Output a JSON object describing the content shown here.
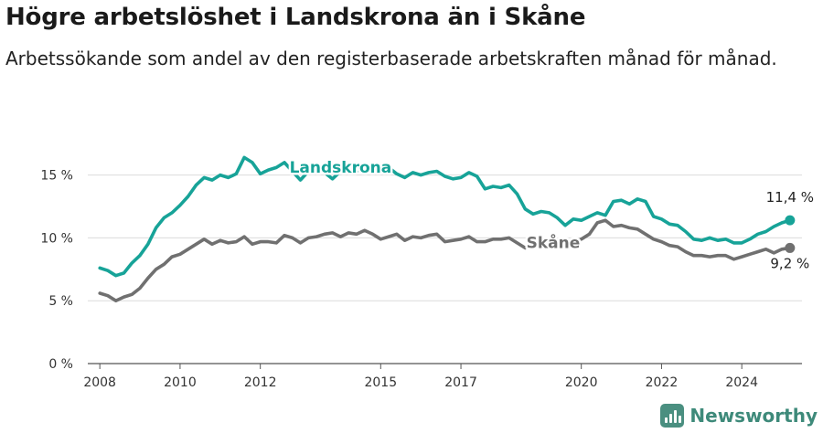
{
  "title": "Högre arbetslöshet i Landskrona än i Skåne",
  "subtitle": "Arbetssökande som andel av den registerbaserade arbetskraften månad för månad.",
  "brand": {
    "name": "Newsworthy",
    "logo_icon": "bar-chart-icon"
  },
  "colors": {
    "landskrona": "#17a398",
    "skane": "#707070",
    "grid": "#dcdcdc",
    "axis": "#555555"
  },
  "chart_data": {
    "type": "line",
    "title": "Högre arbetslöshet i Landskrona än i Skåne",
    "xlabel": "",
    "ylabel": "",
    "xlim": [
      2007.7,
      2025.5
    ],
    "ylim": [
      0,
      17.3
    ],
    "grid": true,
    "x_ticks": [
      {
        "value": 2008,
        "label": "2008"
      },
      {
        "value": 2010,
        "label": "2010"
      },
      {
        "value": 2012,
        "label": "2012"
      },
      {
        "value": 2015,
        "label": "2015"
      },
      {
        "value": 2017,
        "label": "2017"
      },
      {
        "value": 2020,
        "label": "2020"
      },
      {
        "value": 2022,
        "label": "2022"
      },
      {
        "value": 2024,
        "label": "2024"
      }
    ],
    "y_ticks": [
      {
        "value": 0,
        "label": "0 %"
      },
      {
        "value": 5,
        "label": "5 %"
      },
      {
        "value": 10,
        "label": "10 %"
      },
      {
        "value": 15,
        "label": "15 %"
      }
    ],
    "series": [
      {
        "name": "Landskrona",
        "color": "#17a398",
        "end_label": "11,4 %",
        "points": [
          [
            2008.0,
            7.6
          ],
          [
            2008.2,
            7.4
          ],
          [
            2008.4,
            7.0
          ],
          [
            2008.6,
            7.2
          ],
          [
            2008.8,
            8.0
          ],
          [
            2009.0,
            8.6
          ],
          [
            2009.2,
            9.5
          ],
          [
            2009.4,
            10.8
          ],
          [
            2009.6,
            11.6
          ],
          [
            2009.8,
            12.0
          ],
          [
            2010.0,
            12.6
          ],
          [
            2010.2,
            13.3
          ],
          [
            2010.4,
            14.2
          ],
          [
            2010.6,
            14.8
          ],
          [
            2010.8,
            14.6
          ],
          [
            2011.0,
            15.0
          ],
          [
            2011.2,
            14.8
          ],
          [
            2011.4,
            15.1
          ],
          [
            2011.6,
            16.4
          ],
          [
            2011.8,
            16.0
          ],
          [
            2012.0,
            15.1
          ],
          [
            2012.2,
            15.4
          ],
          [
            2012.4,
            15.6
          ],
          [
            2012.6,
            16.0
          ],
          [
            2012.8,
            15.3
          ],
          [
            2013.0,
            14.6
          ],
          [
            2013.2,
            15.3
          ],
          [
            2013.4,
            15.4
          ],
          [
            2013.6,
            15.2
          ],
          [
            2013.8,
            14.7
          ],
          [
            2014.0,
            15.3
          ],
          [
            2014.2,
            15.4
          ],
          [
            2014.4,
            15.3
          ],
          [
            2014.6,
            15.7
          ],
          [
            2014.8,
            15.6
          ],
          [
            2015.0,
            15.8
          ],
          [
            2015.2,
            15.6
          ],
          [
            2015.4,
            15.1
          ],
          [
            2015.6,
            14.8
          ],
          [
            2015.8,
            15.2
          ],
          [
            2016.0,
            15.0
          ],
          [
            2016.2,
            15.2
          ],
          [
            2016.4,
            15.3
          ],
          [
            2016.6,
            14.9
          ],
          [
            2016.8,
            14.7
          ],
          [
            2017.0,
            14.8
          ],
          [
            2017.2,
            15.2
          ],
          [
            2017.4,
            14.9
          ],
          [
            2017.6,
            13.9
          ],
          [
            2017.8,
            14.1
          ],
          [
            2018.0,
            14.0
          ],
          [
            2018.2,
            14.2
          ],
          [
            2018.4,
            13.5
          ],
          [
            2018.6,
            12.3
          ],
          [
            2018.8,
            11.9
          ],
          [
            2019.0,
            12.1
          ],
          [
            2019.2,
            12.0
          ],
          [
            2019.4,
            11.6
          ],
          [
            2019.6,
            11.0
          ],
          [
            2019.8,
            11.5
          ],
          [
            2020.0,
            11.4
          ],
          [
            2020.2,
            11.7
          ],
          [
            2020.4,
            12.0
          ],
          [
            2020.6,
            11.8
          ],
          [
            2020.8,
            12.9
          ],
          [
            2021.0,
            13.0
          ],
          [
            2021.2,
            12.7
          ],
          [
            2021.4,
            13.1
          ],
          [
            2021.6,
            12.9
          ],
          [
            2021.8,
            11.7
          ],
          [
            2022.0,
            11.5
          ],
          [
            2022.2,
            11.1
          ],
          [
            2022.4,
            11.0
          ],
          [
            2022.6,
            10.5
          ],
          [
            2022.8,
            9.9
          ],
          [
            2023.0,
            9.8
          ],
          [
            2023.2,
            10.0
          ],
          [
            2023.4,
            9.8
          ],
          [
            2023.6,
            9.9
          ],
          [
            2023.8,
            9.6
          ],
          [
            2024.0,
            9.6
          ],
          [
            2024.2,
            9.9
          ],
          [
            2024.4,
            10.3
          ],
          [
            2024.6,
            10.5
          ],
          [
            2024.8,
            10.9
          ],
          [
            2025.0,
            11.2
          ],
          [
            2025.2,
            11.4
          ]
        ]
      },
      {
        "name": "Skåne",
        "color": "#707070",
        "end_label": "9,2 %",
        "points": [
          [
            2008.0,
            5.6
          ],
          [
            2008.2,
            5.4
          ],
          [
            2008.4,
            5.0
          ],
          [
            2008.6,
            5.3
          ],
          [
            2008.8,
            5.5
          ],
          [
            2009.0,
            6.0
          ],
          [
            2009.2,
            6.8
          ],
          [
            2009.4,
            7.5
          ],
          [
            2009.6,
            7.9
          ],
          [
            2009.8,
            8.5
          ],
          [
            2010.0,
            8.7
          ],
          [
            2010.2,
            9.1
          ],
          [
            2010.4,
            9.5
          ],
          [
            2010.6,
            9.9
          ],
          [
            2010.8,
            9.5
          ],
          [
            2011.0,
            9.8
          ],
          [
            2011.2,
            9.6
          ],
          [
            2011.4,
            9.7
          ],
          [
            2011.6,
            10.1
          ],
          [
            2011.8,
            9.5
          ],
          [
            2012.0,
            9.7
          ],
          [
            2012.2,
            9.7
          ],
          [
            2012.4,
            9.6
          ],
          [
            2012.6,
            10.2
          ],
          [
            2012.8,
            10.0
          ],
          [
            2013.0,
            9.6
          ],
          [
            2013.2,
            10.0
          ],
          [
            2013.4,
            10.1
          ],
          [
            2013.6,
            10.3
          ],
          [
            2013.8,
            10.4
          ],
          [
            2014.0,
            10.1
          ],
          [
            2014.2,
            10.4
          ],
          [
            2014.4,
            10.3
          ],
          [
            2014.6,
            10.6
          ],
          [
            2014.8,
            10.3
          ],
          [
            2015.0,
            9.9
          ],
          [
            2015.2,
            10.1
          ],
          [
            2015.4,
            10.3
          ],
          [
            2015.6,
            9.8
          ],
          [
            2015.8,
            10.1
          ],
          [
            2016.0,
            10.0
          ],
          [
            2016.2,
            10.2
          ],
          [
            2016.4,
            10.3
          ],
          [
            2016.6,
            9.7
          ],
          [
            2016.8,
            9.8
          ],
          [
            2017.0,
            9.9
          ],
          [
            2017.2,
            10.1
          ],
          [
            2017.4,
            9.7
          ],
          [
            2017.6,
            9.7
          ],
          [
            2017.8,
            9.9
          ],
          [
            2018.0,
            9.9
          ],
          [
            2018.2,
            10.0
          ],
          [
            2018.4,
            9.6
          ],
          [
            2018.6,
            9.2
          ],
          [
            2018.8,
            9.4
          ],
          [
            2019.0,
            9.5
          ],
          [
            2019.2,
            9.6
          ],
          [
            2019.4,
            9.6
          ],
          [
            2019.6,
            9.4
          ],
          [
            2019.8,
            9.6
          ],
          [
            2020.0,
            9.9
          ],
          [
            2020.2,
            10.3
          ],
          [
            2020.4,
            11.2
          ],
          [
            2020.6,
            11.4
          ],
          [
            2020.8,
            10.9
          ],
          [
            2021.0,
            11.0
          ],
          [
            2021.2,
            10.8
          ],
          [
            2021.4,
            10.7
          ],
          [
            2021.6,
            10.3
          ],
          [
            2021.8,
            9.9
          ],
          [
            2022.0,
            9.7
          ],
          [
            2022.2,
            9.4
          ],
          [
            2022.4,
            9.3
          ],
          [
            2022.6,
            8.9
          ],
          [
            2022.8,
            8.6
          ],
          [
            2023.0,
            8.6
          ],
          [
            2023.2,
            8.5
          ],
          [
            2023.4,
            8.6
          ],
          [
            2023.6,
            8.6
          ],
          [
            2023.8,
            8.3
          ],
          [
            2024.0,
            8.5
          ],
          [
            2024.2,
            8.7
          ],
          [
            2024.4,
            8.9
          ],
          [
            2024.6,
            9.1
          ],
          [
            2024.8,
            8.8
          ],
          [
            2025.0,
            9.1
          ],
          [
            2025.2,
            9.2
          ]
        ]
      }
    ]
  }
}
